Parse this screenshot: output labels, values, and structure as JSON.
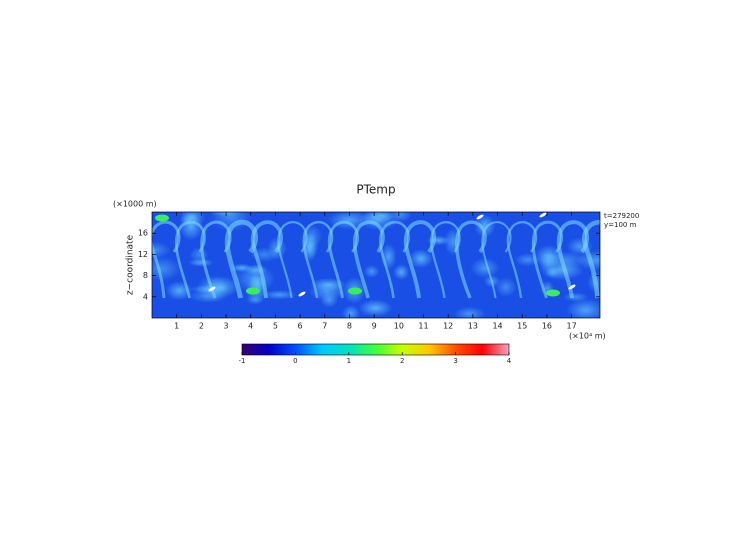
{
  "chart_data": {
    "type": "heatmap",
    "title": "PTemp",
    "ylabel": "z−coordinate",
    "y_unit": "(×1000 m)",
    "x_unit": "(×10⁴ m)",
    "annotations": [
      "t=279200",
      "y=100 m"
    ],
    "xlim": [
      0,
      18.15
    ],
    "xticks": [
      1,
      2,
      3,
      4,
      5,
      6,
      7,
      8,
      9,
      10,
      11,
      12,
      13,
      14,
      15,
      16,
      17
    ],
    "ylim": [
      0,
      20
    ],
    "yticks": [
      4,
      8,
      12,
      16
    ],
    "clim": [
      -1,
      4
    ],
    "cticks": [
      -1,
      0,
      1,
      2,
      3,
      4
    ],
    "colormap": [
      "#3a0070",
      "#0000c8",
      "#0050ff",
      "#00c8ff",
      "#00e0c0",
      "#40ff40",
      "#c8ff00",
      "#ffc800",
      "#ff5000",
      "#ff0000",
      "#ffa0c0"
    ]
  }
}
